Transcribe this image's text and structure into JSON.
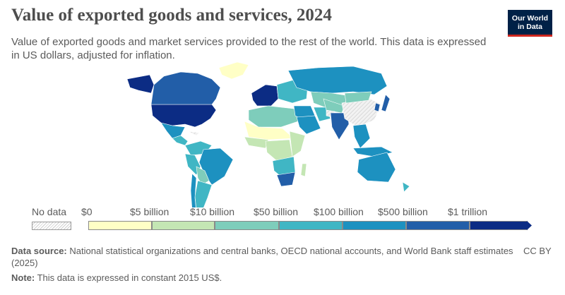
{
  "header": {
    "title": "Value of exported goods and services, 2024",
    "subtitle": "Value of exported goods and market services provided to the rest of the world. This data is expressed in US dollars, adjusted for inflation.",
    "logo_line1": "Our World",
    "logo_line2": "in Data"
  },
  "legend": {
    "no_data_label": "No data",
    "ticks": [
      "$0",
      "$5 billion",
      "$10 billion",
      "$50 billion",
      "$100 billion",
      "$500 billion",
      "$1 trillion"
    ],
    "bins": [
      "#ffffc6",
      "#c4e6b4",
      "#7ecdbb",
      "#40b6c4",
      "#1d91c0",
      "#225ea8",
      "#0c2c84"
    ],
    "no_data_color": "#e0e0e0"
  },
  "map_regions": [
    {
      "name": "United States",
      "color": "#0c2c84"
    },
    {
      "name": "Canada",
      "color": "#225ea8"
    },
    {
      "name": "Alaska",
      "color": "#0c2c84"
    },
    {
      "name": "Greenland",
      "color": "#ffffc6"
    },
    {
      "name": "Mexico",
      "color": "#1d91c0"
    },
    {
      "name": "Central America",
      "color": "#40b6c4"
    },
    {
      "name": "Cuba",
      "color": "#e0e0e0"
    },
    {
      "name": "Colombia and Venezuela",
      "color": "#40b6c4"
    },
    {
      "name": "Brazil",
      "color": "#1d91c0"
    },
    {
      "name": "Peru",
      "color": "#40b6c4"
    },
    {
      "name": "Bolivia and Paraguay",
      "color": "#7ecdbb"
    },
    {
      "name": "Argentina",
      "color": "#40b6c4"
    },
    {
      "name": "Chile",
      "color": "#1d91c0"
    },
    {
      "name": "Western Europe",
      "color": "#0c2c84"
    },
    {
      "name": "Eastern Europe",
      "color": "#40b6c4"
    },
    {
      "name": "Russia",
      "color": "#1d91c0"
    },
    {
      "name": "Kazakhstan",
      "color": "#7ecdbb"
    },
    {
      "name": "North Africa",
      "color": "#7ecdbb"
    },
    {
      "name": "Sahel",
      "color": "#ffffc6"
    },
    {
      "name": "West Africa",
      "color": "#c4e6b4"
    },
    {
      "name": "Central Africa",
      "color": "#c4e6b4"
    },
    {
      "name": "East Africa",
      "color": "#c4e6b4"
    },
    {
      "name": "Southern Africa",
      "color": "#40b6c4"
    },
    {
      "name": "South Africa",
      "color": "#225ea8"
    },
    {
      "name": "Madagascar",
      "color": "#c4e6b4"
    },
    {
      "name": "Middle East",
      "color": "#1d91c0"
    },
    {
      "name": "Saudi Arabia",
      "color": "#1d91c0"
    },
    {
      "name": "Iran",
      "color": "#40b6c4"
    },
    {
      "name": "Central Asia",
      "color": "#7ecdbb"
    },
    {
      "name": "Afghanistan",
      "color": "#e0e0e0"
    },
    {
      "name": "India",
      "color": "#225ea8"
    },
    {
      "name": "China",
      "color": "#e0e0e0"
    },
    {
      "name": "Mongolia",
      "color": "#7ecdbb"
    },
    {
      "name": "Southeast Asia",
      "color": "#1d91c0"
    },
    {
      "name": "Indonesia",
      "color": "#1d91c0"
    },
    {
      "name": "Japan",
      "color": "#225ea8"
    },
    {
      "name": "Korea",
      "color": "#225ea8"
    },
    {
      "name": "Australia",
      "color": "#1d91c0"
    },
    {
      "name": "New Zealand",
      "color": "#40b6c4"
    }
  ],
  "footer": {
    "source_label": "Data source:",
    "source_text": "National statistical organizations and central banks, OECD national accounts, and World Bank staff estimates (2025)",
    "note_label": "Note:",
    "note_text": "This data is expressed in constant 2015 US$.",
    "license": "CC BY"
  }
}
